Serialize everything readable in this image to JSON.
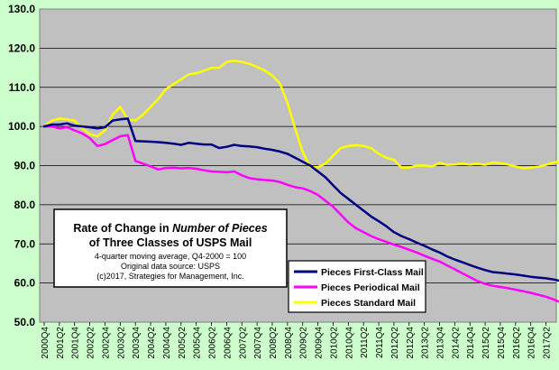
{
  "chart_data": {
    "type": "line",
    "title_lines": [
      "Rate of Change in ",
      "Number of Pieces",
      "of Three Classes of USPS Mail"
    ],
    "notes": [
      "4-quarter moving average, Q4-2000 = 100",
      "Original data source: USPS",
      "(c)2017, Strategies for Management, Inc."
    ],
    "ylim": [
      50,
      130
    ],
    "y_ticks": [
      "50.0",
      "60.0",
      "70.0",
      "80.0",
      "90.0",
      "100.0",
      "110.0",
      "120.0",
      "130.0"
    ],
    "x_ticks": [
      "2000Q4",
      "2001Q2",
      "2001Q4",
      "2002Q2",
      "2002Q4",
      "2003Q2",
      "2003Q4",
      "2004Q2",
      "2004Q4",
      "2005Q2",
      "2005Q4",
      "2006Q2",
      "2006Q4",
      "2007Q2",
      "2007Q4",
      "2008Q2",
      "2008Q4",
      "2009Q2",
      "2009Q4",
      "2010Q2",
      "2010Q4",
      "2011Q2",
      "2011Q4",
      "2012Q2",
      "2012Q4",
      "2013Q2",
      "2013Q4",
      "2014Q2",
      "2014Q4",
      "2015Q2",
      "2015Q4",
      "2016Q2",
      "2016Q4",
      "2017Q2"
    ],
    "grid": true,
    "legend_position": "bottom-right",
    "series": [
      {
        "name": "Pieces First-Class Mail",
        "color": "#000080",
        "values": [
          100.0,
          100.5,
          100.5,
          100.8,
          100.2,
          100.0,
          99.8,
          99.5,
          99.8,
          101.5,
          101.8,
          102.0,
          96.3,
          96.2,
          96.1,
          96.0,
          95.8,
          95.6,
          95.3,
          95.8,
          95.6,
          95.4,
          95.4,
          94.5,
          94.8,
          95.3,
          95.0,
          94.9,
          94.7,
          94.3,
          94.0,
          93.6,
          93.0,
          92.0,
          91.0,
          90.0,
          88.5,
          87.0,
          85.0,
          83.0,
          81.5,
          80.0,
          78.5,
          77.0,
          75.8,
          74.5,
          73.0,
          72.0,
          71.2,
          70.3,
          69.5,
          68.6,
          67.8,
          66.8,
          66.0,
          65.3,
          64.6,
          63.9,
          63.3,
          62.8,
          62.6,
          62.4,
          62.2,
          61.9,
          61.6,
          61.4,
          61.2,
          60.9,
          60.5,
          60.0,
          59.3
        ]
      },
      {
        "name": "Pieces Periodical Mail",
        "color": "#ff00ff",
        "values": [
          100.0,
          100.0,
          99.5,
          99.8,
          99.0,
          98.2,
          97.0,
          95.0,
          95.5,
          96.5,
          97.5,
          97.8,
          91.2,
          90.5,
          89.8,
          89.0,
          89.4,
          89.5,
          89.3,
          89.4,
          89.2,
          88.8,
          88.5,
          88.4,
          88.3,
          88.5,
          87.5,
          86.8,
          86.5,
          86.3,
          86.2,
          85.8,
          85.1,
          84.5,
          84.2,
          83.5,
          82.5,
          81.0,
          79.5,
          77.5,
          75.5,
          74.0,
          73.0,
          72.0,
          71.2,
          70.5,
          69.8,
          69.2,
          68.5,
          67.8,
          67.0,
          66.2,
          65.5,
          64.5,
          63.5,
          62.5,
          61.5,
          60.5,
          59.8,
          59.3,
          59.0,
          58.7,
          58.3,
          57.9,
          57.5,
          57.0,
          56.5,
          55.8,
          55.0,
          54.2,
          53.2
        ]
      },
      {
        "name": "Pieces Standard Mail",
        "color": "#ffff00",
        "values": [
          100.0,
          101.5,
          102.0,
          101.8,
          101.5,
          99.5,
          98.0,
          97.5,
          99.0,
          103.0,
          105.0,
          101.8,
          101.5,
          103.0,
          105.0,
          107.0,
          109.5,
          110.8,
          112.0,
          113.3,
          113.6,
          114.2,
          115.0,
          115.0,
          116.5,
          116.8,
          116.5,
          116.0,
          115.2,
          114.3,
          113.0,
          111.0,
          106.0,
          99.5,
          93.5,
          89.6,
          89.6,
          90.5,
          92.5,
          94.5,
          95.0,
          95.2,
          95.0,
          94.5,
          93.0,
          92.0,
          91.5,
          89.5,
          89.5,
          90.0,
          90.0,
          89.8,
          90.7,
          90.2,
          90.3,
          90.5,
          90.3,
          90.5,
          90.2,
          90.8,
          90.6,
          90.3,
          89.8,
          89.3,
          89.5,
          89.7,
          90.2,
          90.8,
          91.0,
          90.5
        ]
      }
    ]
  }
}
